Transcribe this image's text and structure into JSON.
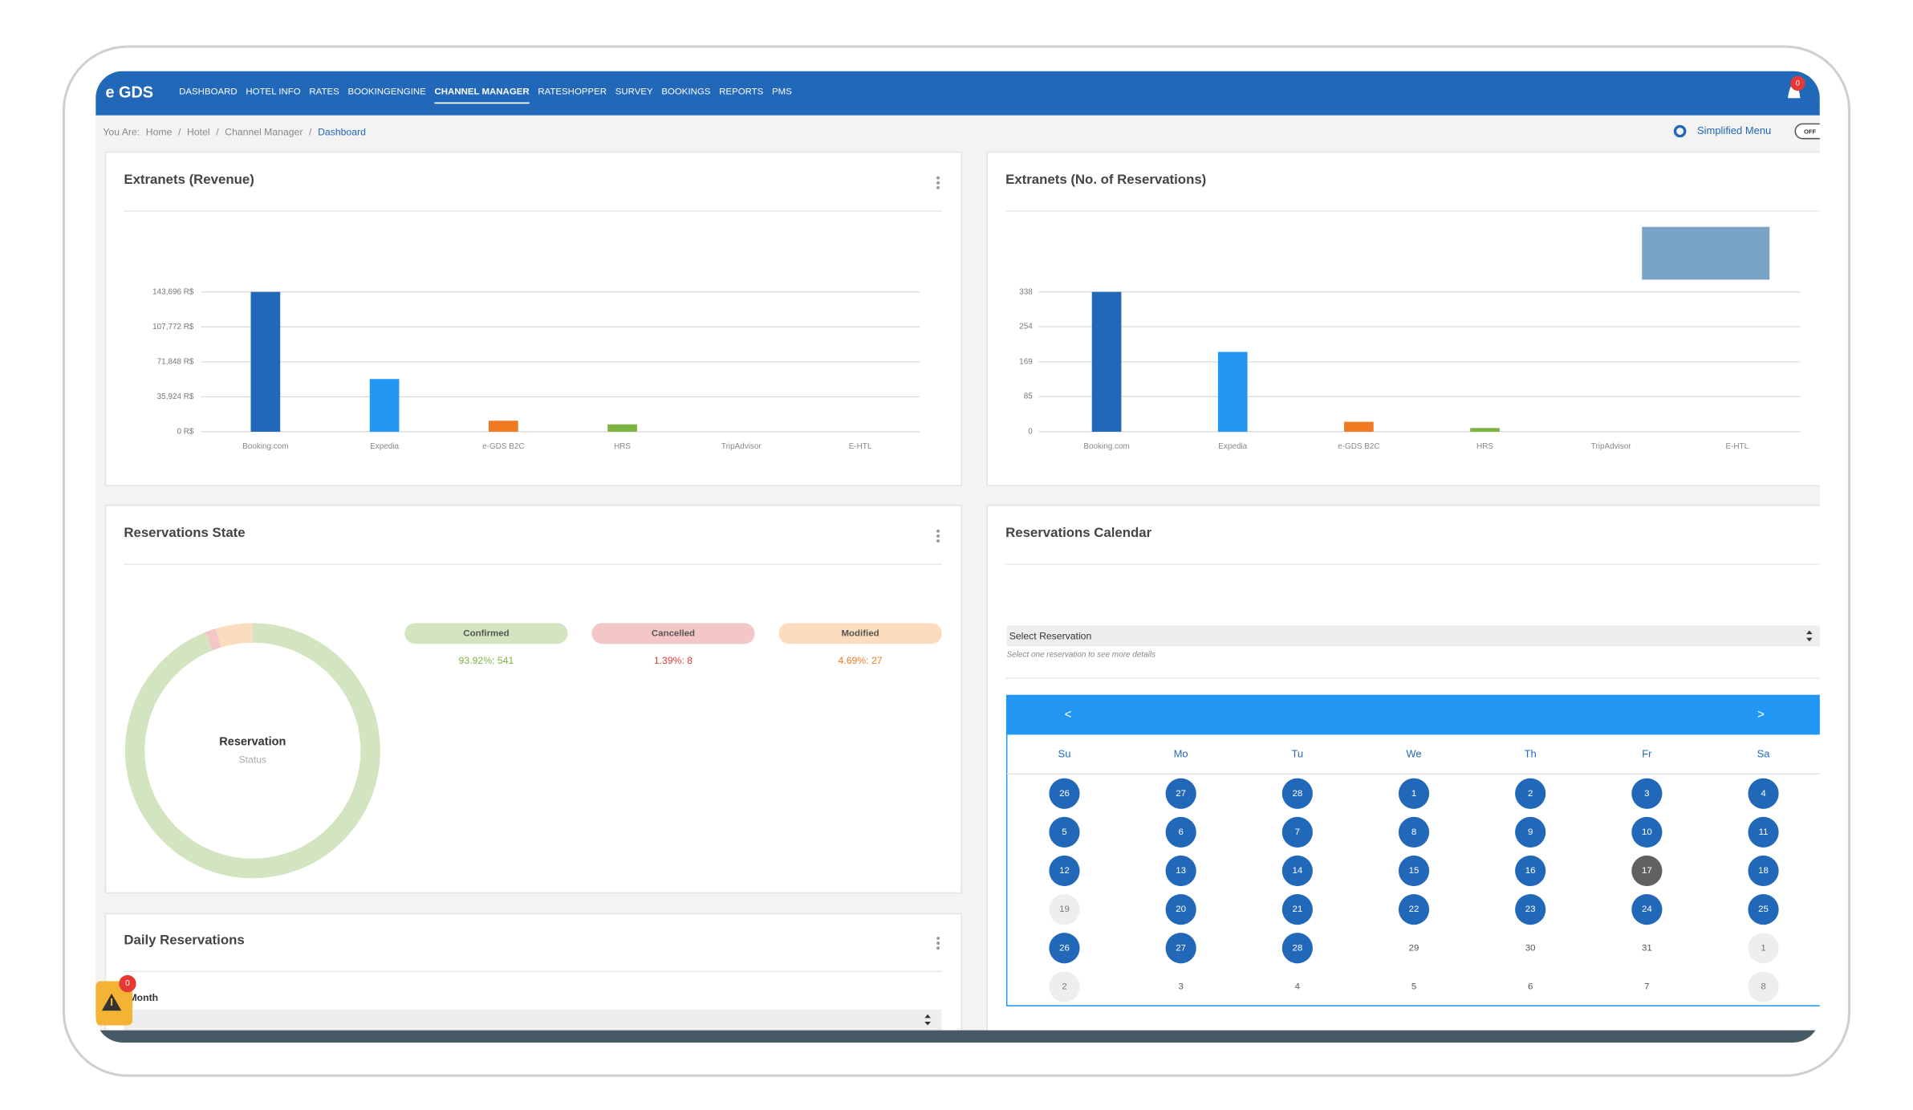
{
  "nav": {
    "logo": "e GDS",
    "items": [
      "DASHBOARD",
      "HOTEL INFO",
      "RATES",
      "BOOKINGENGINE",
      "CHANNEL MANAGER",
      "RATESHOPPER",
      "SURVEY",
      "BOOKINGS",
      "REPORTS",
      "PMS"
    ],
    "active": 4,
    "notifications": "0"
  },
  "breadcrumb": {
    "label": "You Are:",
    "items": [
      "Home",
      "Hotel",
      "Channel Manager",
      "Dashboard"
    ],
    "separator": "/",
    "menu": "Simplified Menu",
    "toggle": "OFF"
  },
  "chart_data": [
    {
      "type": "bar",
      "title": "Extranets (Revenue)",
      "categories": [
        "Booking.com",
        "Expedia",
        "e-GDS B2C",
        "HRS",
        "TripAdvisor",
        "E-HTL"
      ],
      "values": [
        143696,
        54200,
        11300,
        7600,
        0,
        0
      ],
      "colors": [
        "#2268b8",
        "#2196f3",
        "#f07a21",
        "#7cb342",
        "#9e9e9e",
        "#9e9e9e"
      ],
      "ylim": [
        0,
        143696
      ],
      "yticks": [
        {
          "value": 0,
          "label": "0 R$"
        },
        {
          "value": 35924,
          "label": "35,924 R$"
        },
        {
          "value": 71848,
          "label": "71,848 R$"
        },
        {
          "value": 107772,
          "label": "107,772 R$"
        },
        {
          "value": 143696,
          "label": "143,696 R$"
        }
      ],
      "grid": true
    },
    {
      "type": "bar",
      "title": "Extranets (No. of Reservations)",
      "categories": [
        "Booking.com",
        "Expedia",
        "e-GDS B2C",
        "HRS",
        "TripAdvisor",
        "E-HTL"
      ],
      "values": [
        338,
        193,
        24,
        9,
        0,
        0
      ],
      "colors": [
        "#2268b8",
        "#2196f3",
        "#f07a21",
        "#7cb342",
        "#9e9e9e",
        "#9e9e9e"
      ],
      "ylim": [
        0,
        338
      ],
      "yticks": [
        0,
        85,
        169,
        254,
        338
      ],
      "grid": true
    },
    {
      "type": "donut",
      "title": "Reservations State",
      "categories": [
        "Confirmed",
        "Cancelled",
        "Modified"
      ],
      "values": [
        541,
        8,
        27
      ],
      "value_labels": [
        "93.92%: 541",
        "1.39%: 8",
        "4.69%: 27"
      ],
      "colors": [
        "#d3e4c0",
        "#f4c7c7",
        "#fbdcbf"
      ],
      "text_colors": [
        "#7cb342",
        "#e53935",
        "#f07a21"
      ],
      "center_title": "Reservation",
      "center_subtitle": "Status"
    }
  ],
  "calendar": {
    "title": "Reservations Calendar",
    "select": "Select Reservation",
    "hint": "Select one reservation to see more details",
    "prev": "<",
    "next": ">",
    "weekdays": [
      "Su",
      "Mo",
      "Tu",
      "We",
      "Th",
      "Fr",
      "Sa"
    ],
    "weeks": [
      [
        {
          "day": 26,
          "state": "booked"
        },
        {
          "day": 27,
          "state": "booked"
        },
        {
          "day": 28,
          "state": "booked"
        },
        {
          "day": 1,
          "state": "booked"
        },
        {
          "day": 2,
          "state": "booked"
        },
        {
          "day": 3,
          "state": "booked"
        },
        {
          "day": 4,
          "state": "booked"
        }
      ],
      [
        {
          "day": 5,
          "state": "booked"
        },
        {
          "day": 6,
          "state": "booked"
        },
        {
          "day": 7,
          "state": "booked"
        },
        {
          "day": 8,
          "state": "booked"
        },
        {
          "day": 9,
          "state": "booked"
        },
        {
          "day": 10,
          "state": "booked"
        },
        {
          "day": 11,
          "state": "booked"
        }
      ],
      [
        {
          "day": 12,
          "state": "booked"
        },
        {
          "day": 13,
          "state": "booked"
        },
        {
          "day": 14,
          "state": "booked"
        },
        {
          "day": 15,
          "state": "booked"
        },
        {
          "day": 16,
          "state": "booked"
        },
        {
          "day": 17,
          "state": "today"
        },
        {
          "day": 18,
          "state": "booked"
        }
      ],
      [
        {
          "day": 19,
          "state": "muted"
        },
        {
          "day": 20,
          "state": "booked"
        },
        {
          "day": 21,
          "state": "booked"
        },
        {
          "day": 22,
          "state": "booked"
        },
        {
          "day": 23,
          "state": "booked"
        },
        {
          "day": 24,
          "state": "booked"
        },
        {
          "day": 25,
          "state": "booked"
        }
      ],
      [
        {
          "day": 26,
          "state": "booked"
        },
        {
          "day": 27,
          "state": "booked"
        },
        {
          "day": 28,
          "state": "booked"
        },
        {
          "day": 29,
          "state": "plain"
        },
        {
          "day": 30,
          "state": "plain"
        },
        {
          "day": 31,
          "state": "plain"
        },
        {
          "day": 1,
          "state": "muted"
        }
      ],
      [
        {
          "day": 2,
          "state": "muted"
        },
        {
          "day": 3,
          "state": "plain"
        },
        {
          "day": 4,
          "state": "plain"
        },
        {
          "day": 5,
          "state": "plain"
        },
        {
          "day": 6,
          "state": "plain"
        },
        {
          "day": 7,
          "state": "plain"
        },
        {
          "day": 8,
          "state": "muted"
        }
      ]
    ]
  },
  "daily": {
    "title": "Daily Reservations",
    "field": "Month",
    "alerts": "0"
  }
}
